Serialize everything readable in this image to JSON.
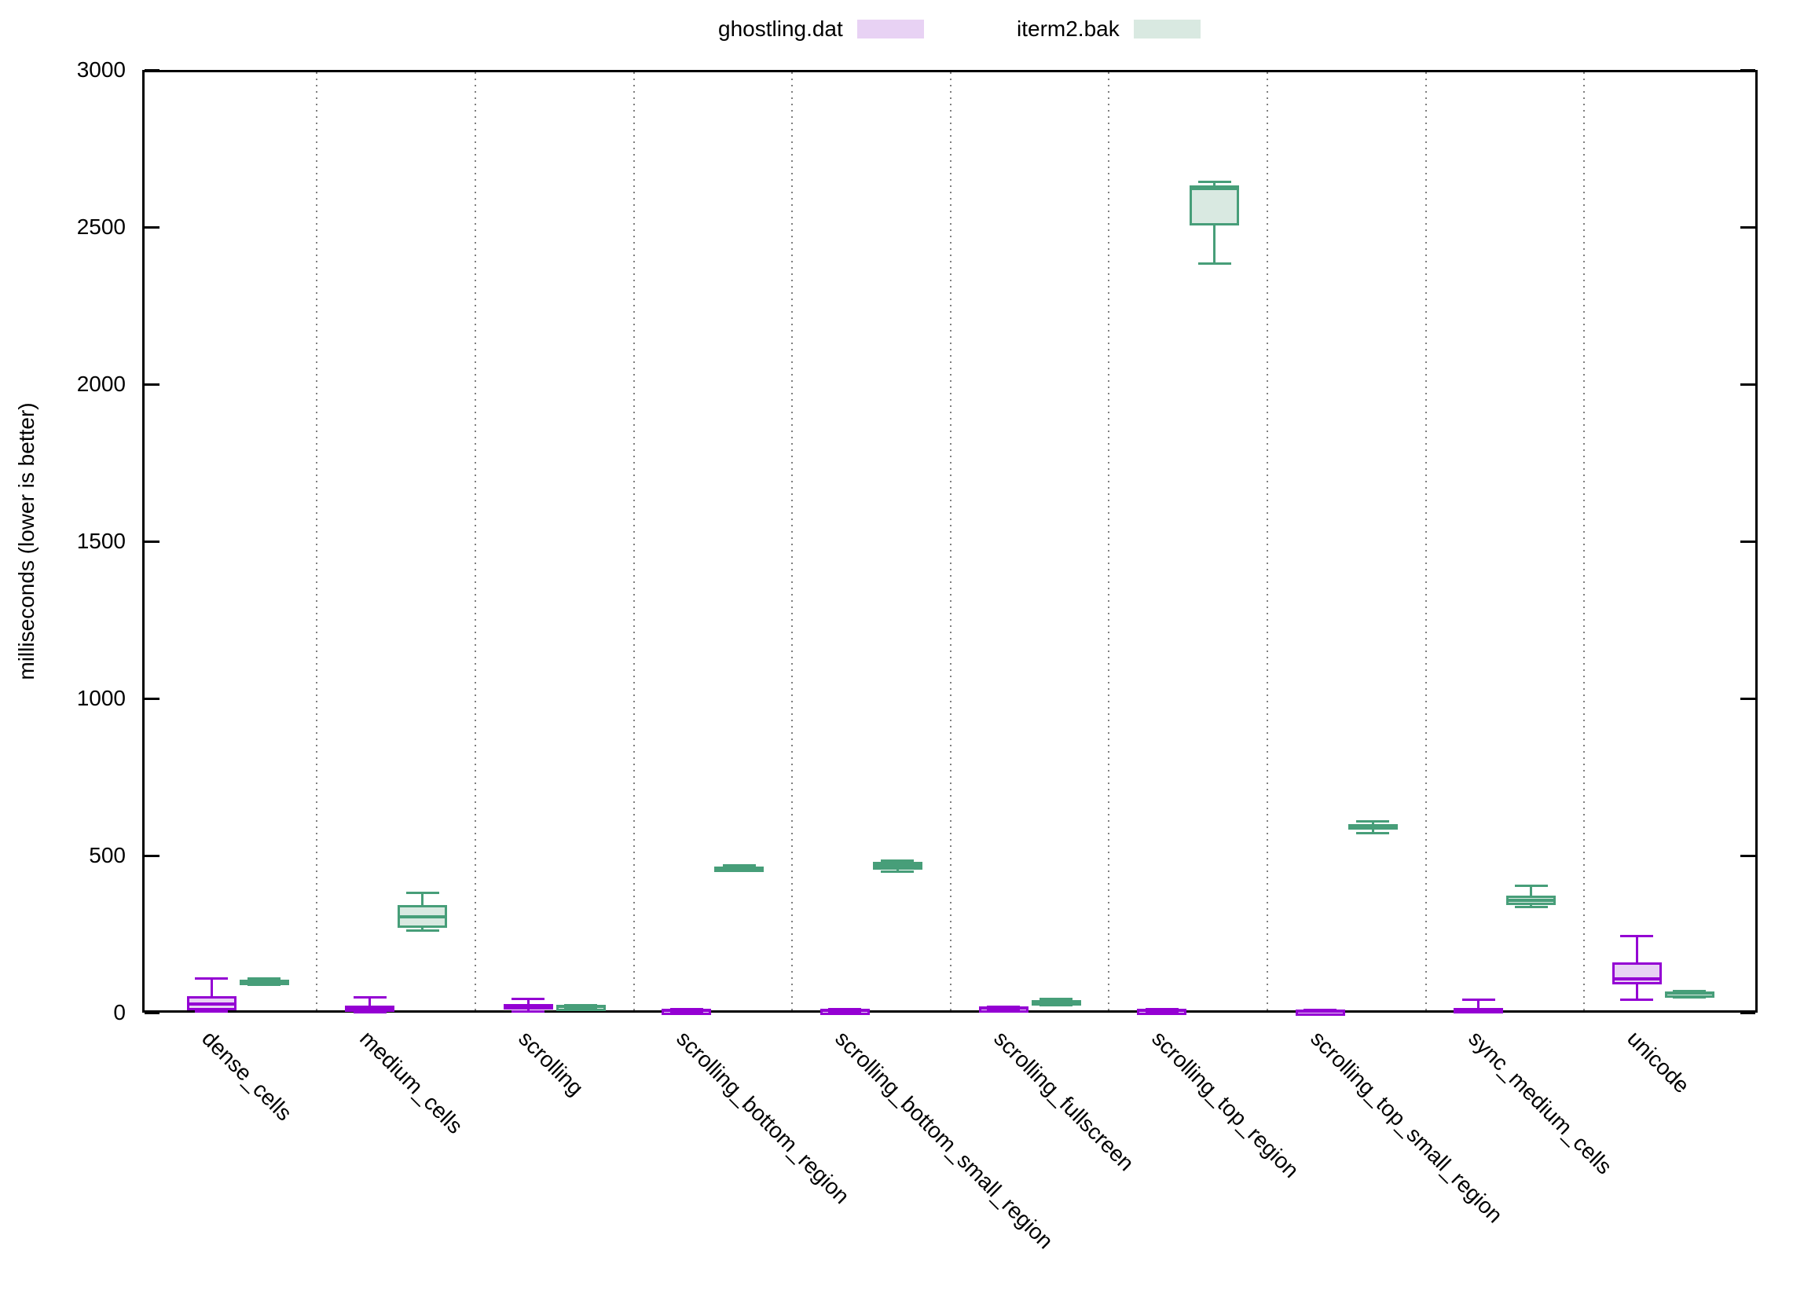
{
  "chart_data": {
    "type": "boxplot",
    "title": "",
    "ylabel": "milliseconds (lower is better)",
    "xlabel": "",
    "ylim": [
      0,
      3000
    ],
    "yticks": [
      0,
      500,
      1000,
      1500,
      2000,
      2500,
      3000
    ],
    "grid": "dotted vertical separator lines between category slots",
    "legend_position": "top-center",
    "categories": [
      "dense_cells",
      "medium_cells",
      "scrolling",
      "scrolling_bottom_region",
      "scrolling_bottom_small_region",
      "scrolling_fullscreen",
      "scrolling_top_region",
      "scrolling_top_small_region",
      "sync_medium_cells",
      "unicode"
    ],
    "series": [
      {
        "name": "ghostling.dat",
        "border_color": "#9400d3",
        "fill_color": "#e8d2f4",
        "boxes": [
          {
            "low": 3,
            "q1": 8,
            "median": 28,
            "q3": 53,
            "high": 110
          },
          {
            "low": 1,
            "q1": 3,
            "median": 9,
            "q3": 22,
            "high": 48
          },
          {
            "low": 5,
            "q1": 9,
            "median": 19,
            "q3": 27,
            "high": 45
          },
          {
            "low": 4,
            "q1": 5,
            "median": 7,
            "q3": 9,
            "high": 11
          },
          {
            "low": 4,
            "q1": 5,
            "median": 7,
            "q3": 9,
            "high": 11
          },
          {
            "low": 10,
            "q1": 12,
            "median": 15,
            "q3": 18,
            "high": 20
          },
          {
            "low": 4,
            "q1": 5,
            "median": 7,
            "q3": 9,
            "high": 11
          },
          {
            "low": 4,
            "q1": 5,
            "median": 6,
            "q3": 8,
            "high": 10
          },
          {
            "low": 1,
            "q1": 1,
            "median": 4,
            "q3": 16,
            "high": 41
          },
          {
            "low": 41,
            "q1": 91,
            "median": 108,
            "q3": 160,
            "high": 245
          }
        ]
      },
      {
        "name": "iterm2.bak",
        "border_color": "#479e79",
        "fill_color": "#d9e9e1",
        "boxes": [
          {
            "low": 89,
            "q1": 94,
            "median": 100,
            "q3": 105,
            "high": 110
          },
          {
            "low": 262,
            "q1": 269,
            "median": 305,
            "q3": 342,
            "high": 382
          },
          {
            "low": 17,
            "q1": 19,
            "median": 21,
            "q3": 23,
            "high": 25
          },
          {
            "low": 452,
            "q1": 457,
            "median": 461,
            "q3": 465,
            "high": 469
          },
          {
            "low": 449,
            "q1": 455,
            "median": 468,
            "q3": 480,
            "high": 485
          },
          {
            "low": 24,
            "q1": 28,
            "median": 33,
            "q3": 39,
            "high": 43
          },
          {
            "low": 2385,
            "q1": 2505,
            "median": 2622,
            "q3": 2633,
            "high": 2643
          },
          {
            "low": 571,
            "q1": 583,
            "median": 592,
            "q3": 599,
            "high": 608
          },
          {
            "low": 336,
            "q1": 343,
            "median": 358,
            "q3": 373,
            "high": 405
          },
          {
            "low": 48,
            "q1": 52,
            "median": 62,
            "q3": 66,
            "high": 70
          }
        ]
      }
    ]
  },
  "colors": {
    "axis": "#000000",
    "grid_dots": "#7f7f7f",
    "background": "#ffffff",
    "text": "#000000"
  }
}
